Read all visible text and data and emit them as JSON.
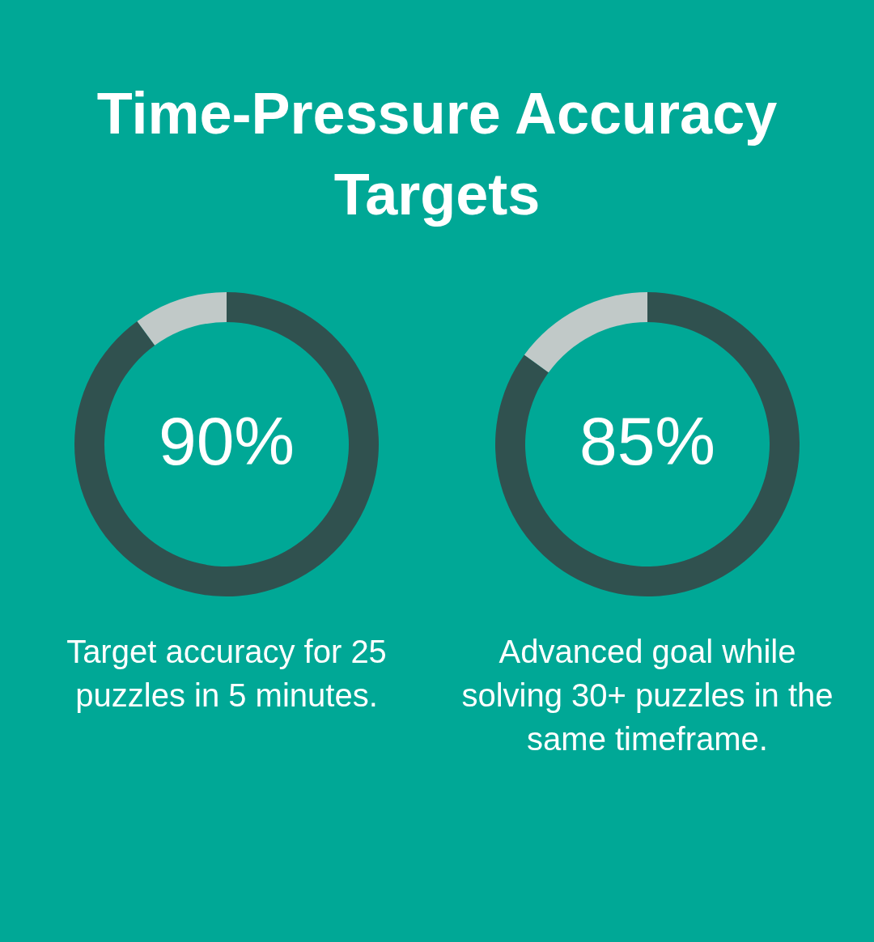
{
  "chart_data": [
    {
      "type": "donut",
      "title": "Time-Pressure Accuracy Targets",
      "categories": [
        null,
        null
      ],
      "values": [
        90,
        10
      ],
      "colors": [
        "#30514f",
        "#c1c9c8"
      ],
      "value_labels": [
        "90%",
        null
      ],
      "annotations": [
        "Target accuracy for 25 puzzles in 5 minutes."
      ]
    },
    {
      "type": "donut",
      "categories": [
        null,
        null
      ],
      "values": [
        85,
        15
      ],
      "colors": [
        "#30514f",
        "#c1c9c8"
      ],
      "value_labels": [
        "85%",
        null
      ],
      "annotations": [
        "Advanced goal while solving 30+ puzzles in the same timeframe."
      ]
    }
  ]
}
